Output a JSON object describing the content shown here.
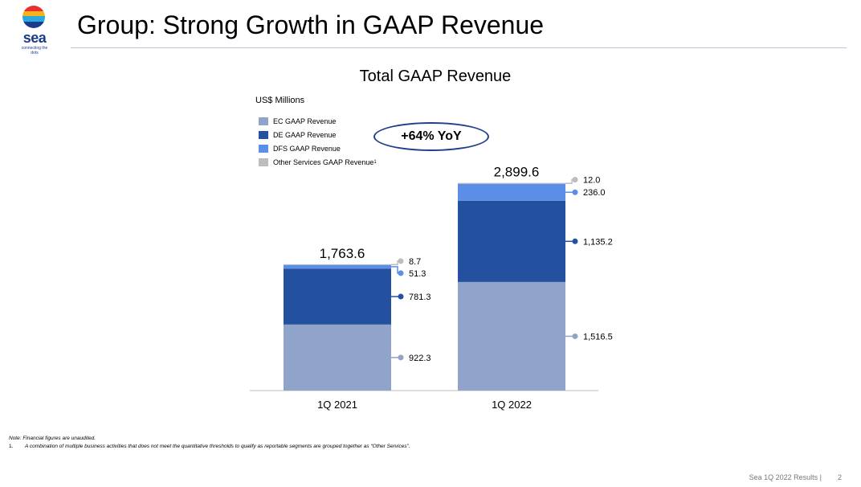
{
  "brand": {
    "name": "sea",
    "tagline": "connecting the dots",
    "colors": [
      "#e8312f",
      "#f7b21b",
      "#2aa8e0",
      "#1a3b8c"
    ]
  },
  "slide": {
    "title": "Group: Strong Growth in GAAP Revenue"
  },
  "callout": {
    "text": "+64% YoY"
  },
  "chart_data": {
    "type": "bar",
    "stacked": true,
    "title": "Total GAAP Revenue",
    "unit_label": "US$ Millions",
    "categories": [
      "1Q 2021",
      "1Q 2022"
    ],
    "totals": [
      "1,763.6",
      "2,899.6"
    ],
    "series": [
      {
        "name": "EC GAAP Revenue",
        "color": "#8fa4c8",
        "values": [
          922.3,
          1516.5
        ],
        "labels": [
          "922.3",
          "1,516.5"
        ]
      },
      {
        "name": "DE GAAP Revenue",
        "color": "#23509f",
        "values": [
          781.3,
          1135.2
        ],
        "labels": [
          "781.3",
          "1,135.2"
        ]
      },
      {
        "name": "DFS GAAP Revenue",
        "color": "#5b8ee6",
        "values": [
          51.3,
          236.0
        ],
        "labels": [
          "51.3",
          "236.0"
        ]
      },
      {
        "name": "Other Services GAAP Revenue",
        "footnote_ref": "1",
        "color": "#bdbdbd",
        "values": [
          8.7,
          12.0
        ],
        "labels": [
          "8.7",
          "12.0"
        ]
      }
    ],
    "ylim": [
      0,
      3200
    ],
    "legend": "top-left"
  },
  "footnotes": {
    "note": "Note: Financial figures are unaudited.",
    "items": [
      {
        "num": "1.",
        "text": "A combination of multiple business activities that does not meet the quantitative thresholds to qualify as reportable segments are grouped together as “Other Services”."
      }
    ]
  },
  "footer": {
    "text": "Sea 1Q 2022 Results |",
    "page": "2"
  }
}
